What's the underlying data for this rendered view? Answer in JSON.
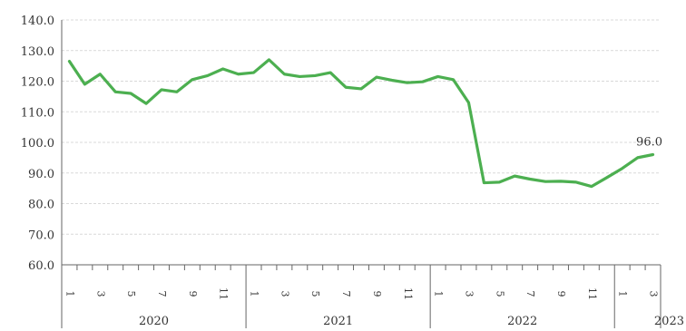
{
  "chart_data": {
    "type": "line",
    "title": "",
    "xlabel": "",
    "ylabel": "",
    "ylim": [
      60,
      140
    ],
    "y_ticks": [
      "60.0",
      "70.0",
      "80.0",
      "90.0",
      "100.0",
      "110.0",
      "120.0",
      "130.0",
      "140.0"
    ],
    "grid": true,
    "line_color": "#4caf50",
    "x": [
      "2020-01",
      "2020-02",
      "2020-03",
      "2020-04",
      "2020-05",
      "2020-06",
      "2020-07",
      "2020-08",
      "2020-09",
      "2020-10",
      "2020-11",
      "2020-12",
      "2021-01",
      "2021-02",
      "2021-03",
      "2021-04",
      "2021-05",
      "2021-06",
      "2021-07",
      "2021-08",
      "2021-09",
      "2021-10",
      "2021-11",
      "2021-12",
      "2022-01",
      "2022-02",
      "2022-03",
      "2022-04",
      "2022-05",
      "2022-06",
      "2022-07",
      "2022-08",
      "2022-09",
      "2022-10",
      "2022-11",
      "2022-12",
      "2023-01",
      "2023-02",
      "2023-03"
    ],
    "month_labels": [
      "1",
      "",
      "3",
      "",
      "5",
      "",
      "7",
      "",
      "9",
      "",
      "11",
      "",
      "1",
      "",
      "3",
      "",
      "5",
      "",
      "7",
      "",
      "9",
      "",
      "11",
      "",
      "1",
      "",
      "3",
      "",
      "5",
      "",
      "7",
      "",
      "9",
      "",
      "11",
      "",
      "1",
      "",
      "3"
    ],
    "year_labels": [
      "2020",
      "2021",
      "2022",
      "2023"
    ],
    "series": [
      {
        "values": [
          126.5,
          119.0,
          122.3,
          116.5,
          116.0,
          112.7,
          117.2,
          116.5,
          120.5,
          121.8,
          124.0,
          122.3,
          122.8,
          127.0,
          122.3,
          121.5,
          121.8,
          122.8,
          118.0,
          117.5,
          121.3,
          120.3,
          119.5,
          119.8,
          121.5,
          120.5,
          113.0,
          86.8,
          87.0,
          89.0,
          88.0,
          87.2,
          87.3,
          87.0,
          85.6,
          88.5,
          91.5,
          95.0,
          96.0
        ]
      }
    ],
    "annotations": [
      {
        "text": "96.0",
        "point_index": 38
      }
    ]
  }
}
